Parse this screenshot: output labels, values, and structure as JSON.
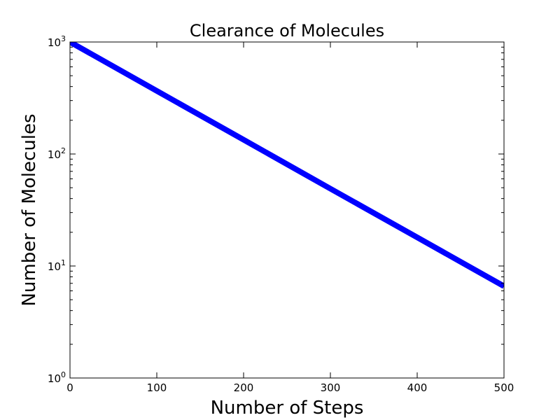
{
  "chart_data": {
    "type": "line",
    "title": "Clearance of Molecules",
    "xlabel": "Number of Steps",
    "ylabel": "Number of Molecules",
    "xlim": [
      0,
      500
    ],
    "ylim": [
      1,
      1000
    ],
    "yscale": "log",
    "grid": false,
    "x_ticks": [
      "0",
      "100",
      "200",
      "300",
      "400",
      "500"
    ],
    "y_ticks": [
      {
        "base": "10",
        "exp": "0",
        "value": 1
      },
      {
        "base": "10",
        "exp": "1",
        "value": 10
      },
      {
        "base": "10",
        "exp": "2",
        "value": 100
      },
      {
        "base": "10",
        "exp": "3",
        "value": 1000
      }
    ],
    "series": [
      {
        "color": "#0000ff",
        "x": [
          0,
          100,
          200,
          300,
          400,
          500
        ],
        "y": [
          1000,
          366,
          134,
          49,
          18,
          6.6
        ]
      }
    ]
  }
}
